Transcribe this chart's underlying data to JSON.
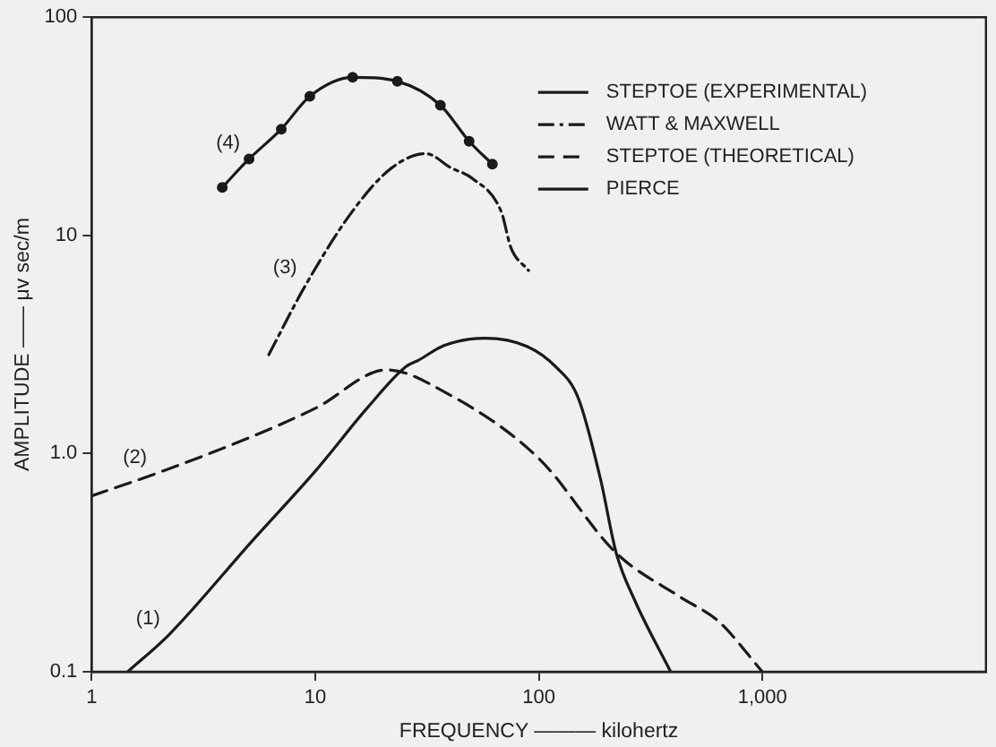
{
  "chart_data": {
    "type": "line",
    "xlabel": "FREQUENCY ——— kilohertz",
    "ylabel": "AMPLITUDE —— μv sec/m",
    "log": "xy",
    "xlim": [
      1,
      10000
    ],
    "ylim": [
      0.1,
      100
    ],
    "xticks": [
      1,
      10,
      100,
      {
        "value": 1000,
        "label": "1,000"
      }
    ],
    "yticks": [
      0.1,
      {
        "value": 1,
        "label": "1.0"
      },
      10,
      100
    ],
    "grid": false,
    "legend": "top right",
    "series": [
      {
        "name": "STEPTOE (EXPERIMENTAL)",
        "color": "#1a1a1a",
        "marker": "circle",
        "line_style": "solid",
        "x": [
          3.84,
          5.06,
          7.05,
          9.46,
          14.7,
          23.3,
          36.3,
          48.8,
          62
        ],
        "values": [
          16.6,
          22.4,
          30.7,
          43.4,
          53,
          50.8,
          39.5,
          27,
          21.2
        ]
      },
      {
        "name": "WATT & MAXWELL",
        "color": "#1a1a1a",
        "marker": "none",
        "line_style": "dashdot",
        "x": [
          6.2,
          9.1,
          15,
          22,
          31.3,
          40.5,
          50.6,
          68,
          75,
          90
        ],
        "values": [
          2.84,
          5.97,
          13.3,
          20.4,
          23.7,
          20.4,
          18.2,
          12.8,
          8.8,
          6.9
        ]
      },
      {
        "name": "STEPTOE (THEORETICAL)",
        "color": "#1a1a1a",
        "marker": "none",
        "line_style": "dashed",
        "x": [
          1,
          1.94,
          5.25,
          10.1,
          20.9,
          37.7,
          100,
          222,
          429,
          638,
          1000
        ],
        "values": [
          0.64,
          0.81,
          1.2,
          1.62,
          2.42,
          1.92,
          0.95,
          0.35,
          0.22,
          0.17,
          0.1
        ]
      },
      {
        "name": "PIERCE",
        "color": "#1a1a1a",
        "marker": "none",
        "line_style": "solid",
        "x": [
          1.45,
          2.22,
          5.25,
          10.1,
          17.1,
          25.4,
          29,
          37.7,
          57.5,
          88.5,
          119,
          150,
          189,
          222,
          270,
          389
        ],
        "values": [
          0.1,
          0.148,
          0.4,
          0.84,
          1.62,
          2.5,
          2.68,
          3.13,
          3.38,
          3.1,
          2.5,
          1.8,
          0.76,
          0.35,
          0.21,
          0.1
        ]
      }
    ],
    "annotations": [
      "(1)",
      "(2)",
      "(3)",
      "(4)"
    ]
  }
}
